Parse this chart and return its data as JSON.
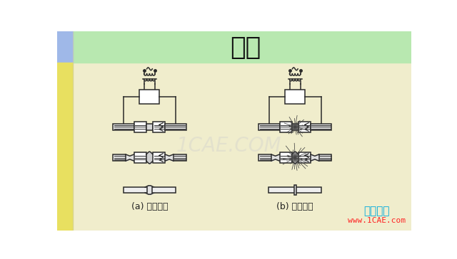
{
  "title": "对焊",
  "title_fontsize": 26,
  "title_color": "#111111",
  "bg_top_color": "#b8e8b0",
  "bg_main_color": "#f0edcc",
  "bg_left_blue": "#9fb8e8",
  "bg_left_yellow": "#f0ea80",
  "label_a": "(a) 电阻对焊",
  "label_b": "(b) 闪光对焊",
  "label_fontsize": 9,
  "watermark": "1CAE.COM",
  "brand_text1": "仿真在线",
  "brand_text2": "www.1CAE.com",
  "brand_color1": "#00aadd",
  "brand_color2": "#ff2222",
  "line_color": "#2a2a2a",
  "line_width": 1.1
}
